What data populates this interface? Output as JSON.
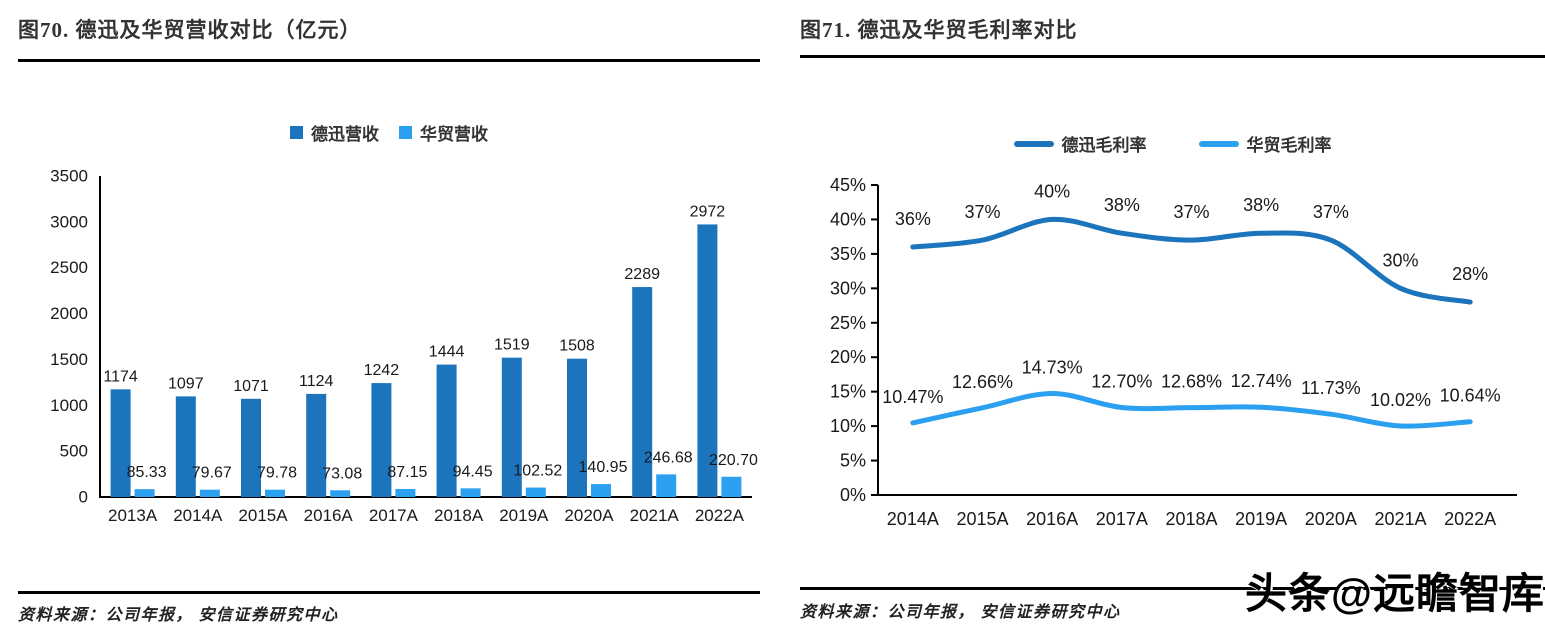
{
  "page": {
    "background": "#ffffff"
  },
  "colors": {
    "dark_blue": "#1B74BC",
    "light_blue": "#2B9FF0",
    "axis": "#000000",
    "text": "#1a1a1a"
  },
  "left_panel": {
    "title": "图70. 德迅及华贸营收对比（亿元）",
    "source": "资料来源：公司年报， 安信证券研究中心"
  },
  "right_panel": {
    "title": "图71. 德迅及华贸毛利率对比",
    "source": "资料来源：公司年报， 安信证券研究中心"
  },
  "watermark": "头条@远瞻智库",
  "chart_data": [
    {
      "type": "bar",
      "title": "图70. 德迅及华贸营收对比（亿元）",
      "categories": [
        "2013A",
        "2014A",
        "2015A",
        "2016A",
        "2017A",
        "2018A",
        "2019A",
        "2020A",
        "2021A",
        "2022A"
      ],
      "series": [
        {
          "name": "德迅营收",
          "color": "#1B74BC",
          "values": [
            1174,
            1097,
            1071,
            1124,
            1242,
            1444,
            1519,
            1508,
            2289,
            2972
          ],
          "labels": [
            "1174",
            "1097",
            "1071",
            "1124",
            "1242",
            "1444",
            "1519",
            "1508",
            "2289",
            "2972"
          ]
        },
        {
          "name": "华贸营收",
          "color": "#2B9FF0",
          "values": [
            85.33,
            79.67,
            79.78,
            73.08,
            87.15,
            94.45,
            102.52,
            140.95,
            246.68,
            220.7
          ],
          "labels": [
            "85.33",
            "79.67",
            "79.78",
            "73.08",
            "87.15",
            "94.45",
            "102.52",
            "140.95",
            "246.68",
            "220.70"
          ]
        }
      ],
      "xlabel": "",
      "ylabel": "",
      "ylim": [
        0,
        3500
      ],
      "ytick_step": 500,
      "ytick_labels": [
        "0",
        "500",
        "1000",
        "1500",
        "2000",
        "2500",
        "3000",
        "3500"
      ],
      "grid": false,
      "legend_position": "top"
    },
    {
      "type": "line",
      "title": "图71. 德迅及华贸毛利率对比",
      "categories": [
        "2014A",
        "2015A",
        "2016A",
        "2017A",
        "2018A",
        "2019A",
        "2020A",
        "2021A",
        "2022A"
      ],
      "series": [
        {
          "name": "德迅毛利率",
          "color": "#1B74BC",
          "values": [
            36,
            37,
            40,
            38,
            37,
            38,
            37,
            30,
            28
          ],
          "labels": [
            "36%",
            "37%",
            "40%",
            "38%",
            "37%",
            "38%",
            "37%",
            "30%",
            "28%"
          ]
        },
        {
          "name": "华贸毛利率",
          "color": "#2B9FF0",
          "values": [
            10.47,
            12.66,
            14.73,
            12.7,
            12.68,
            12.74,
            11.73,
            10.02,
            10.64
          ],
          "labels": [
            "10.47%",
            "12.66%",
            "14.73%",
            "12.70%",
            "12.68%",
            "12.74%",
            "11.73%",
            "10.02%",
            "10.64%"
          ]
        }
      ],
      "xlabel": "",
      "ylabel": "",
      "ylim": [
        0,
        45
      ],
      "ytick_step": 5,
      "ytick_format": "percent",
      "ytick_labels": [
        "0%",
        "5%",
        "10%",
        "15%",
        "20%",
        "25%",
        "30%",
        "35%",
        "40%",
        "45%"
      ],
      "grid": false,
      "legend_position": "top"
    }
  ]
}
